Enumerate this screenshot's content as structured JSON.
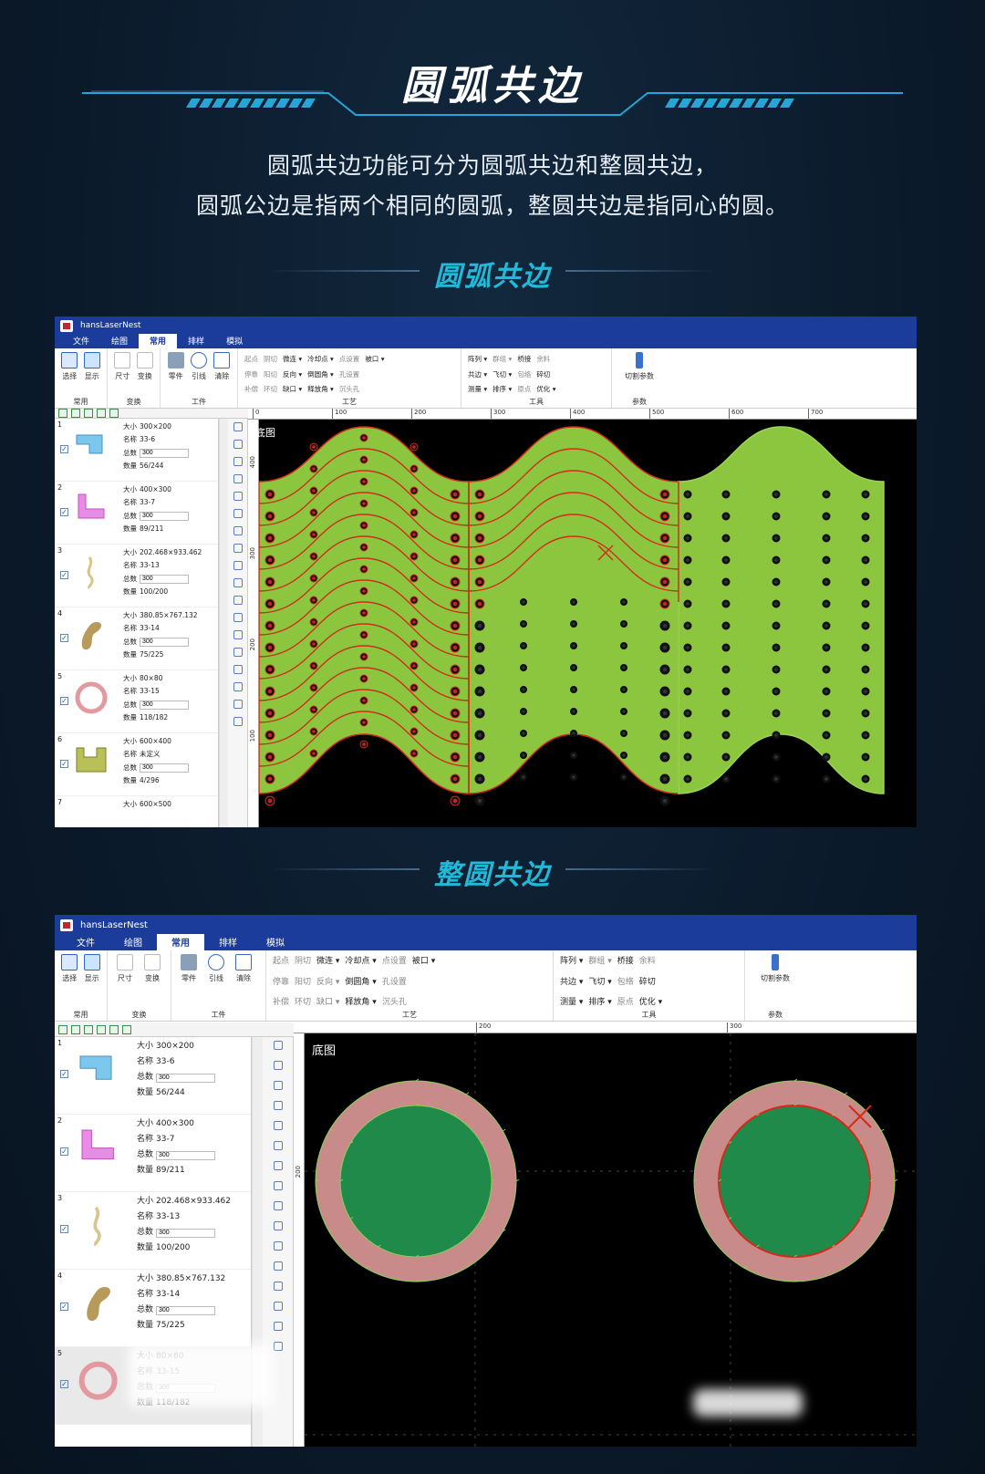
{
  "header": {
    "title": "圆弧共边",
    "desc_line1": "圆弧共边功能可分为圆弧共边和整圆共边，",
    "desc_line2": "圆弧公边是指两个相同的圆弧，整圆共边是指同心的圆。"
  },
  "section1_title": "圆弧共边",
  "section2_title": "整圆共边",
  "app": {
    "title": "hansLaserNest",
    "menu": [
      "文件",
      "绘图",
      "常用",
      "排样",
      "模拟"
    ],
    "active_menu": "常用",
    "ribbon": {
      "select": "选择",
      "display": "显示",
      "size": "尺寸",
      "transform": "变换",
      "part": "零件",
      "leadline": "引线",
      "clear": "清除",
      "process_col1": [
        "起点",
        "停靠",
        "补偿"
      ],
      "process_col2": [
        "阴切",
        "阳切",
        "环切"
      ],
      "process_col3": [
        "微连 ▾",
        "反向 ▾",
        "缺口 ▾"
      ],
      "process_col4": [
        "冷却点 ▾",
        "倒圆角 ▾",
        "释放角 ▾"
      ],
      "process_col5": [
        "点设置",
        "孔设置",
        "沉头孔"
      ],
      "notch": "被口 ▾",
      "tools_col1": [
        "阵列 ▾",
        "共边 ▾",
        "测量 ▾"
      ],
      "tools_col2": [
        "群组 ▾",
        "飞切 ▾",
        "排序 ▾"
      ],
      "tools_col3": [
        "桥接",
        "包络",
        "原点"
      ],
      "tools_col4": [
        "余料",
        "碎切",
        "优化 ▾"
      ],
      "cut_params": "切割参数",
      "group_labels": [
        "常用",
        "变换",
        "工件",
        "工艺",
        "工具",
        "参数"
      ]
    },
    "canvas_label": "底图"
  },
  "labels": {
    "size": "大小",
    "name": "名称",
    "total": "总数",
    "qty": "数量"
  },
  "parts": [
    {
      "num": "1",
      "size": "300×200",
      "name": "33-6",
      "total": "300",
      "qty": "56/244",
      "color": "#7cc7ee"
    },
    {
      "num": "2",
      "size": "400×300",
      "name": "33-7",
      "total": "300",
      "qty": "89/211",
      "color": "#e78de6"
    },
    {
      "num": "3",
      "size": "202.468×933.462",
      "name": "33-13",
      "total": "300",
      "qty": "100/200",
      "color": "#d9c48a"
    },
    {
      "num": "4",
      "size": "380.85×767.132",
      "name": "33-14",
      "total": "300",
      "qty": "75/225",
      "color": "#b89a5c"
    },
    {
      "num": "5",
      "size": "80×80",
      "name": "33-15",
      "total": "300",
      "qty": "118/182",
      "color": "#e29aa0"
    },
    {
      "num": "6",
      "size": "600×400",
      "name": "未定义",
      "total": "300",
      "qty": "4/296",
      "color": "#b9c05a"
    },
    {
      "num": "7",
      "size": "600×500"
    }
  ],
  "ruler1": [
    "0",
    "100",
    "200",
    "300",
    "400",
    "500",
    "600",
    "700"
  ],
  "ruler2": [
    "200",
    "300"
  ],
  "ruler_left1": [
    "400",
    "300",
    "200",
    "100"
  ],
  "ruler_left2": [
    "200"
  ],
  "colors": {
    "green_part": "#8cc63e",
    "red_outline": "#d42a1a",
    "ring": "#c98a8a",
    "disk": "#1f8a4a",
    "accent": "#22b8d8"
  }
}
